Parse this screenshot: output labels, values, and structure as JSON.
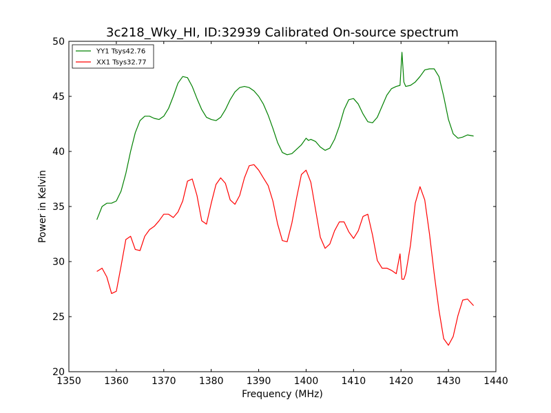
{
  "chart_data": {
    "type": "line",
    "title": "3c218_Wky_HI, ID:32939 Calibrated On-source spectrum",
    "xlabel": "Frequency (MHz)",
    "ylabel": "Power in Kelvin",
    "xlim": [
      1350,
      1440
    ],
    "ylim": [
      20,
      50
    ],
    "xticks": [
      1350,
      1360,
      1370,
      1380,
      1390,
      1400,
      1410,
      1420,
      1430,
      1440
    ],
    "yticks": [
      20,
      25,
      30,
      35,
      40,
      45,
      50
    ],
    "grid": false,
    "legend_position": "top-left",
    "series": [
      {
        "name": "YY1 Tsys42.76",
        "color": "#008000",
        "x": [
          1355.9,
          1357,
          1358,
          1359,
          1360,
          1361,
          1362,
          1363,
          1364,
          1365,
          1366,
          1367,
          1368,
          1369,
          1370,
          1371,
          1372,
          1373,
          1374,
          1375,
          1376,
          1377,
          1378,
          1379,
          1380,
          1381,
          1382,
          1383,
          1384,
          1385,
          1386,
          1387,
          1388,
          1389,
          1390,
          1391,
          1392,
          1393,
          1394,
          1395,
          1396,
          1397,
          1398,
          1399,
          1400,
          1400.5,
          1401,
          1402,
          1403,
          1404,
          1405,
          1406,
          1407,
          1408,
          1409,
          1410,
          1411,
          1412,
          1413,
          1414,
          1415,
          1416,
          1417,
          1418,
          1419,
          1419.8,
          1420.2,
          1420.6,
          1421,
          1422,
          1423,
          1424,
          1425,
          1426,
          1427,
          1428,
          1429,
          1430,
          1431,
          1432,
          1433,
          1434,
          1435.3
        ],
        "values": [
          33.8,
          35.0,
          35.3,
          35.3,
          35.5,
          36.4,
          38.0,
          40.0,
          41.7,
          42.8,
          43.2,
          43.2,
          43.0,
          42.9,
          43.2,
          43.9,
          45.0,
          46.2,
          46.8,
          46.7,
          45.9,
          44.8,
          43.8,
          43.1,
          42.9,
          42.8,
          43.1,
          43.8,
          44.7,
          45.4,
          45.8,
          45.9,
          45.8,
          45.5,
          45.0,
          44.3,
          43.3,
          42.1,
          40.8,
          39.9,
          39.7,
          39.8,
          40.2,
          40.6,
          41.2,
          41.0,
          41.1,
          40.9,
          40.4,
          40.1,
          40.3,
          41.1,
          42.3,
          43.8,
          44.7,
          44.8,
          44.3,
          43.4,
          42.7,
          42.6,
          43.1,
          44.1,
          45.1,
          45.7,
          45.9,
          46.0,
          49.0,
          46.3,
          45.9,
          46.0,
          46.3,
          46.8,
          47.4,
          47.5,
          47.5,
          46.8,
          45.0,
          42.9,
          41.6,
          41.2,
          41.3,
          41.5,
          41.4
        ]
      },
      {
        "name": "XX1 Tsys32.77",
        "color": "#ff0000",
        "x": [
          1355.9,
          1357,
          1358,
          1359,
          1360,
          1361,
          1362,
          1363,
          1364,
          1365,
          1366,
          1367,
          1368,
          1369,
          1370,
          1371,
          1372,
          1373,
          1374,
          1375,
          1376,
          1377,
          1378,
          1379,
          1380,
          1381,
          1382,
          1383,
          1384,
          1385,
          1386,
          1387,
          1388,
          1389,
          1390,
          1391,
          1392,
          1393,
          1394,
          1395,
          1396,
          1397,
          1398,
          1399,
          1400,
          1401,
          1402,
          1403,
          1404,
          1405,
          1406,
          1407,
          1408,
          1409,
          1410,
          1411,
          1412,
          1413,
          1414,
          1415,
          1416,
          1417,
          1418,
          1419,
          1419.8,
          1420.2,
          1420.6,
          1421,
          1422,
          1423,
          1424,
          1425,
          1426,
          1427,
          1428,
          1429,
          1430,
          1431,
          1432,
          1433,
          1434,
          1435.3
        ],
        "values": [
          29.1,
          29.4,
          28.6,
          27.1,
          27.3,
          29.6,
          32.0,
          32.3,
          31.1,
          31.0,
          32.3,
          32.9,
          33.2,
          33.7,
          34.3,
          34.3,
          34.0,
          34.5,
          35.5,
          37.3,
          37.5,
          36.0,
          33.7,
          33.4,
          35.3,
          37.0,
          37.6,
          37.1,
          35.6,
          35.2,
          36.0,
          37.6,
          38.7,
          38.8,
          38.3,
          37.6,
          36.9,
          35.5,
          33.4,
          31.9,
          31.8,
          33.5,
          35.8,
          37.9,
          38.3,
          37.2,
          34.7,
          32.2,
          31.2,
          31.6,
          32.8,
          33.6,
          33.6,
          32.7,
          32.1,
          32.8,
          34.1,
          34.3,
          32.4,
          30.1,
          29.4,
          29.4,
          29.2,
          28.9,
          30.7,
          28.4,
          28.4,
          28.9,
          31.5,
          35.3,
          36.8,
          35.6,
          32.5,
          28.9,
          25.6,
          23.0,
          22.4,
          23.2,
          25.1,
          26.5,
          26.6,
          26.0
        ]
      }
    ]
  }
}
